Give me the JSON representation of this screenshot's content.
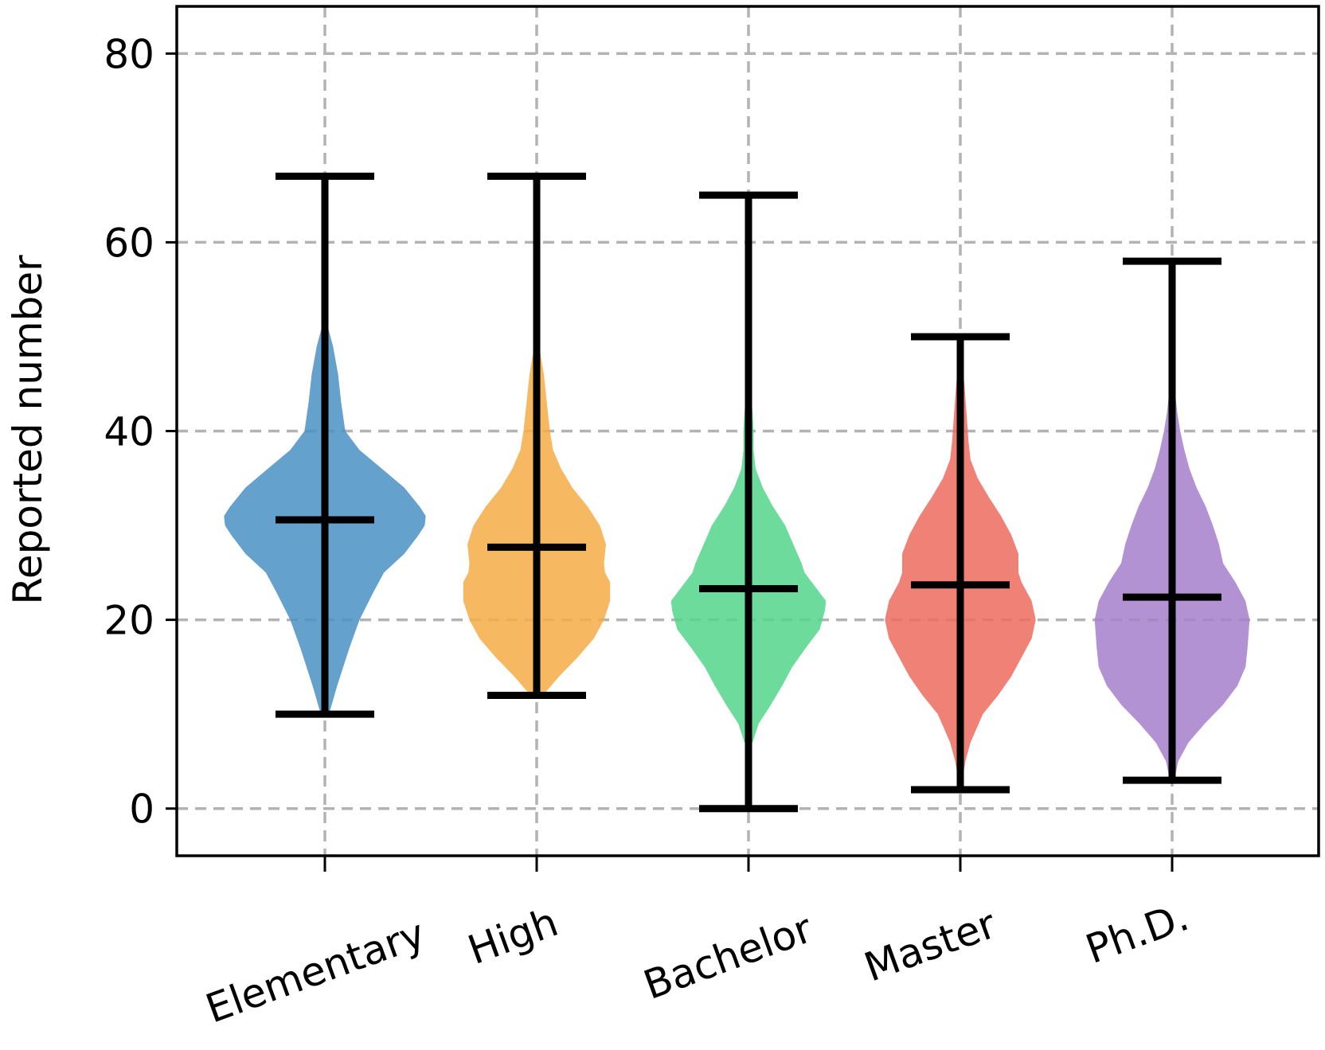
{
  "chart_data": {
    "type": "violin",
    "title": "",
    "xlabel": "",
    "ylabel": "Reported number",
    "ylim": [
      -5,
      85
    ],
    "yticks": [
      0,
      20,
      40,
      60,
      80
    ],
    "grid": true,
    "categories": [
      "Elementary",
      "High",
      "Bachelor",
      "Master",
      "Ph.D."
    ],
    "series": [
      {
        "category": "Elementary",
        "color": "#4a90c4",
        "min": 10,
        "max": 67,
        "mean": 30.6,
        "profile": [
          [
            10,
            0.04
          ],
          [
            13,
            0.12
          ],
          [
            17,
            0.24
          ],
          [
            20,
            0.34
          ],
          [
            23,
            0.48
          ],
          [
            25,
            0.58
          ],
          [
            27,
            0.78
          ],
          [
            29,
            0.92
          ],
          [
            30,
            0.98
          ],
          [
            31,
            0.99
          ],
          [
            32,
            0.93
          ],
          [
            34,
            0.78
          ],
          [
            36,
            0.56
          ],
          [
            38,
            0.34
          ],
          [
            40,
            0.2
          ],
          [
            43,
            0.16
          ],
          [
            46,
            0.13
          ],
          [
            49,
            0.08
          ],
          [
            51,
            0.03
          ],
          [
            52,
            0.0
          ]
        ]
      },
      {
        "category": "High",
        "color": "#f5ad45",
        "min": 12,
        "max": 67,
        "mean": 27.7,
        "profile": [
          [
            12,
            0.06
          ],
          [
            14,
            0.22
          ],
          [
            16,
            0.4
          ],
          [
            18,
            0.56
          ],
          [
            20,
            0.66
          ],
          [
            22,
            0.72
          ],
          [
            24,
            0.72
          ],
          [
            25,
            0.67
          ],
          [
            26,
            0.66
          ],
          [
            28,
            0.68
          ],
          [
            30,
            0.62
          ],
          [
            32,
            0.5
          ],
          [
            34,
            0.35
          ],
          [
            36,
            0.24
          ],
          [
            38,
            0.16
          ],
          [
            40,
            0.13
          ],
          [
            43,
            0.1
          ],
          [
            46,
            0.07
          ],
          [
            48,
            0.04
          ],
          [
            50,
            0.0
          ]
        ]
      },
      {
        "category": "Bachelor",
        "color": "#52d58a",
        "min": 0,
        "max": 65,
        "mean": 23.3,
        "profile": [
          [
            7,
            0.04
          ],
          [
            9,
            0.1
          ],
          [
            11,
            0.22
          ],
          [
            13,
            0.33
          ],
          [
            15,
            0.43
          ],
          [
            17,
            0.56
          ],
          [
            19,
            0.7
          ],
          [
            21,
            0.75
          ],
          [
            22,
            0.76
          ],
          [
            24,
            0.62
          ],
          [
            25,
            0.55
          ],
          [
            26,
            0.52
          ],
          [
            28,
            0.44
          ],
          [
            30,
            0.36
          ],
          [
            32,
            0.24
          ],
          [
            34,
            0.14
          ],
          [
            36,
            0.07
          ],
          [
            38,
            0.05
          ],
          [
            40,
            0.05
          ],
          [
            42,
            0.04
          ],
          [
            44,
            0.02
          ],
          [
            46,
            0.0
          ]
        ]
      },
      {
        "category": "Master",
        "color": "#ec6b5e",
        "min": 2,
        "max": 50,
        "mean": 23.7,
        "profile": [
          [
            3,
            0.02
          ],
          [
            5,
            0.05
          ],
          [
            7,
            0.1
          ],
          [
            10,
            0.22
          ],
          [
            12,
            0.37
          ],
          [
            14,
            0.5
          ],
          [
            16,
            0.6
          ],
          [
            18,
            0.7
          ],
          [
            20,
            0.74
          ],
          [
            22,
            0.7
          ],
          [
            24,
            0.6
          ],
          [
            25,
            0.57
          ],
          [
            27,
            0.57
          ],
          [
            29,
            0.5
          ],
          [
            31,
            0.4
          ],
          [
            33,
            0.28
          ],
          [
            35,
            0.17
          ],
          [
            37,
            0.1
          ],
          [
            39,
            0.08
          ],
          [
            42,
            0.06
          ],
          [
            45,
            0.04
          ],
          [
            47,
            0.02
          ],
          [
            49,
            0.0
          ]
        ]
      },
      {
        "category": "Ph.D.",
        "color": "#a67fcb",
        "min": 3,
        "max": 58,
        "mean": 22.4,
        "profile": [
          [
            3,
            0.02
          ],
          [
            5,
            0.06
          ],
          [
            7,
            0.16
          ],
          [
            9,
            0.32
          ],
          [
            11,
            0.5
          ],
          [
            13,
            0.64
          ],
          [
            15,
            0.72
          ],
          [
            17,
            0.74
          ],
          [
            20,
            0.76
          ],
          [
            22,
            0.72
          ],
          [
            24,
            0.62
          ],
          [
            26,
            0.5
          ],
          [
            28,
            0.46
          ],
          [
            30,
            0.4
          ],
          [
            32,
            0.33
          ],
          [
            34,
            0.24
          ],
          [
            36,
            0.17
          ],
          [
            38,
            0.12
          ],
          [
            40,
            0.08
          ],
          [
            42,
            0.05
          ],
          [
            44,
            0.03
          ],
          [
            46,
            0.0
          ]
        ]
      }
    ]
  }
}
